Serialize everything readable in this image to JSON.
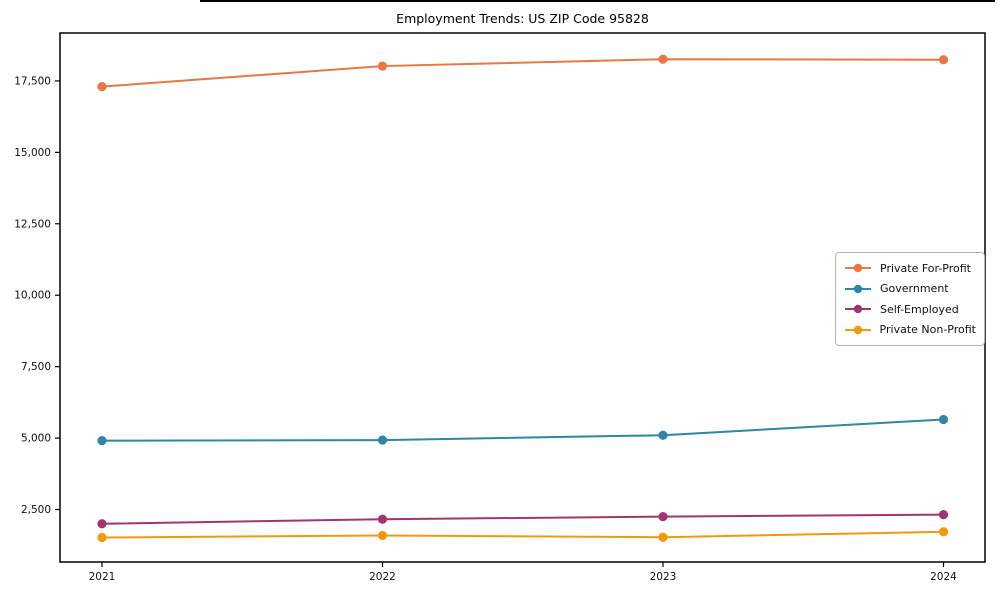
{
  "window": {
    "top_edge_color": "#000000"
  },
  "chart_data": {
    "type": "line",
    "title": "Employment Trends: US ZIP Code 95828",
    "xlabel": "",
    "ylabel": "",
    "x": [
      2021,
      2022,
      2023,
      2024
    ],
    "x_tick_labels": [
      "2021",
      "2022",
      "2023",
      "2024"
    ],
    "y_ticks": [
      2500,
      5000,
      7500,
      10000,
      12500,
      15000,
      17500
    ],
    "y_tick_labels": [
      "2,500",
      "5,000",
      "7,500",
      "10,000",
      "12,500",
      "15,000",
      "17,500"
    ],
    "ylim": [
      660,
      19180
    ],
    "grid": false,
    "legend_position": "center right",
    "series": [
      {
        "name": "Private For-Profit",
        "color": "#e87744",
        "values": [
          17300,
          18020,
          18260,
          18240
        ]
      },
      {
        "name": "Government",
        "color": "#2e87a8",
        "values": [
          4910,
          4930,
          5100,
          5650
        ]
      },
      {
        "name": "Self-Employed",
        "color": "#a23470",
        "values": [
          2000,
          2160,
          2250,
          2320
        ]
      },
      {
        "name": "Private Non-Profit",
        "color": "#f2990a",
        "values": [
          1520,
          1590,
          1530,
          1720
        ]
      }
    ]
  }
}
